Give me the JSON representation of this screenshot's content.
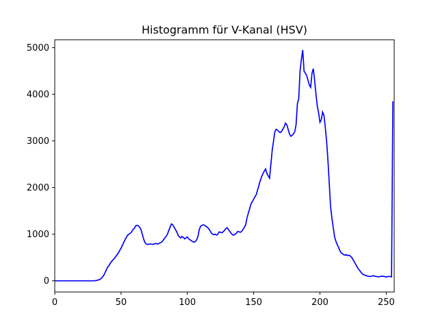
{
  "colors": {
    "line": "#0000ff",
    "axes": "#000000",
    "background": "#ffffff"
  },
  "chart_data": {
    "type": "line",
    "title": "Histogramm für V-Kanal (HSV)",
    "xlabel": "",
    "ylabel": "",
    "xlim": [
      0,
      256
    ],
    "ylim": [
      -240,
      5170
    ],
    "grid": false,
    "legend": "none",
    "x_ticks": [
      0,
      50,
      100,
      150,
      200,
      250
    ],
    "y_ticks": [
      0,
      1000,
      2000,
      3000,
      4000,
      5000
    ],
    "x_tick_labels": [
      "0",
      "50",
      "100",
      "150",
      "200",
      "250"
    ],
    "y_tick_labels": [
      "0",
      "1000",
      "2000",
      "3000",
      "4000",
      "5000"
    ],
    "series": [
      {
        "points": [
          [
            0,
            0
          ],
          [
            30,
            0
          ],
          [
            31,
            5
          ],
          [
            32,
            10
          ],
          [
            33,
            20
          ],
          [
            34,
            30
          ],
          [
            35,
            50
          ],
          [
            36,
            80
          ],
          [
            37,
            120
          ],
          [
            38,
            180
          ],
          [
            39,
            240
          ],
          [
            40,
            300
          ],
          [
            41,
            330
          ],
          [
            42,
            380
          ],
          [
            43,
            420
          ],
          [
            44,
            450
          ],
          [
            45,
            480
          ],
          [
            46,
            520
          ],
          [
            47,
            560
          ],
          [
            48,
            600
          ],
          [
            49,
            650
          ],
          [
            50,
            700
          ],
          [
            51,
            760
          ],
          [
            52,
            820
          ],
          [
            53,
            880
          ],
          [
            54,
            930
          ],
          [
            55,
            980
          ],
          [
            56,
            1000
          ],
          [
            57,
            1020
          ],
          [
            58,
            1050
          ],
          [
            59,
            1100
          ],
          [
            60,
            1120
          ],
          [
            61,
            1180
          ],
          [
            62,
            1190
          ],
          [
            63,
            1180
          ],
          [
            64,
            1150
          ],
          [
            65,
            1100
          ],
          [
            66,
            1000
          ],
          [
            67,
            900
          ],
          [
            68,
            820
          ],
          [
            69,
            790
          ],
          [
            70,
            780
          ],
          [
            72,
            790
          ],
          [
            74,
            780
          ],
          [
            76,
            800
          ],
          [
            78,
            790
          ],
          [
            79,
            810
          ],
          [
            80,
            820
          ],
          [
            81,
            840
          ],
          [
            82,
            880
          ],
          [
            83,
            920
          ],
          [
            84,
            950
          ],
          [
            85,
            1000
          ],
          [
            86,
            1080
          ],
          [
            87,
            1150
          ],
          [
            88,
            1220
          ],
          [
            89,
            1200
          ],
          [
            90,
            1150
          ],
          [
            91,
            1100
          ],
          [
            92,
            1050
          ],
          [
            93,
            980
          ],
          [
            94,
            940
          ],
          [
            95,
            920
          ],
          [
            96,
            950
          ],
          [
            97,
            930
          ],
          [
            98,
            900
          ],
          [
            99,
            920
          ],
          [
            100,
            940
          ],
          [
            101,
            900
          ],
          [
            102,
            880
          ],
          [
            103,
            860
          ],
          [
            104,
            840
          ],
          [
            105,
            830
          ],
          [
            106,
            840
          ],
          [
            107,
            880
          ],
          [
            108,
            950
          ],
          [
            109,
            1100
          ],
          [
            110,
            1170
          ],
          [
            111,
            1190
          ],
          [
            112,
            1200
          ],
          [
            113,
            1190
          ],
          [
            114,
            1170
          ],
          [
            115,
            1150
          ],
          [
            116,
            1120
          ],
          [
            117,
            1080
          ],
          [
            118,
            1030
          ],
          [
            119,
            1000
          ],
          [
            120,
            990
          ],
          [
            121,
            1000
          ],
          [
            122,
            980
          ],
          [
            123,
            1000
          ],
          [
            124,
            1050
          ],
          [
            125,
            1040
          ],
          [
            126,
            1030
          ],
          [
            127,
            1050
          ],
          [
            128,
            1080
          ],
          [
            129,
            1120
          ],
          [
            130,
            1140
          ],
          [
            131,
            1100
          ],
          [
            132,
            1060
          ],
          [
            133,
            1020
          ],
          [
            134,
            990
          ],
          [
            135,
            980
          ],
          [
            136,
            1000
          ],
          [
            137,
            1020
          ],
          [
            138,
            1060
          ],
          [
            139,
            1050
          ],
          [
            140,
            1040
          ],
          [
            141,
            1060
          ],
          [
            142,
            1100
          ],
          [
            143,
            1150
          ],
          [
            144,
            1200
          ],
          [
            145,
            1350
          ],
          [
            146,
            1450
          ],
          [
            147,
            1550
          ],
          [
            148,
            1650
          ],
          [
            149,
            1700
          ],
          [
            150,
            1750
          ],
          [
            151,
            1800
          ],
          [
            152,
            1850
          ],
          [
            153,
            1950
          ],
          [
            154,
            2050
          ],
          [
            155,
            2150
          ],
          [
            156,
            2230
          ],
          [
            157,
            2300
          ],
          [
            158,
            2350
          ],
          [
            159,
            2400
          ],
          [
            160,
            2300
          ],
          [
            161,
            2250
          ],
          [
            162,
            2200
          ],
          [
            163,
            2500
          ],
          [
            164,
            2800
          ],
          [
            165,
            3000
          ],
          [
            166,
            3200
          ],
          [
            167,
            3250
          ],
          [
            168,
            3230
          ],
          [
            169,
            3200
          ],
          [
            170,
            3180
          ],
          [
            171,
            3200
          ],
          [
            172,
            3250
          ],
          [
            173,
            3300
          ],
          [
            174,
            3380
          ],
          [
            175,
            3350
          ],
          [
            176,
            3250
          ],
          [
            177,
            3150
          ],
          [
            178,
            3100
          ],
          [
            179,
            3120
          ],
          [
            180,
            3150
          ],
          [
            181,
            3200
          ],
          [
            182,
            3350
          ],
          [
            183,
            3800
          ],
          [
            184,
            3900
          ],
          [
            185,
            4500
          ],
          [
            186,
            4750
          ],
          [
            187,
            4950
          ],
          [
            188,
            4500
          ],
          [
            189,
            4450
          ],
          [
            190,
            4400
          ],
          [
            191,
            4300
          ],
          [
            192,
            4200
          ],
          [
            193,
            4150
          ],
          [
            194,
            4450
          ],
          [
            195,
            4550
          ],
          [
            196,
            4300
          ],
          [
            197,
            4000
          ],
          [
            198,
            3750
          ],
          [
            199,
            3600
          ],
          [
            200,
            3400
          ],
          [
            201,
            3450
          ],
          [
            202,
            3620
          ],
          [
            203,
            3550
          ],
          [
            204,
            3300
          ],
          [
            205,
            3000
          ],
          [
            206,
            2600
          ],
          [
            207,
            2100
          ],
          [
            208,
            1600
          ],
          [
            209,
            1350
          ],
          [
            210,
            1150
          ],
          [
            211,
            950
          ],
          [
            212,
            850
          ],
          [
            213,
            780
          ],
          [
            214,
            720
          ],
          [
            215,
            650
          ],
          [
            216,
            600
          ],
          [
            217,
            580
          ],
          [
            218,
            560
          ],
          [
            219,
            550
          ],
          [
            220,
            560
          ],
          [
            221,
            540
          ],
          [
            222,
            550
          ],
          [
            223,
            530
          ],
          [
            224,
            500
          ],
          [
            225,
            450
          ],
          [
            226,
            400
          ],
          [
            227,
            350
          ],
          [
            228,
            300
          ],
          [
            229,
            250
          ],
          [
            230,
            220
          ],
          [
            231,
            180
          ],
          [
            232,
            150
          ],
          [
            233,
            130
          ],
          [
            234,
            120
          ],
          [
            235,
            110
          ],
          [
            236,
            100
          ],
          [
            237,
            95
          ],
          [
            238,
            90
          ],
          [
            239,
            100
          ],
          [
            240,
            110
          ],
          [
            241,
            100
          ],
          [
            242,
            95
          ],
          [
            243,
            90
          ],
          [
            244,
            85
          ],
          [
            245,
            90
          ],
          [
            246,
            95
          ],
          [
            247,
            100
          ],
          [
            248,
            95
          ],
          [
            249,
            90
          ],
          [
            250,
            80
          ],
          [
            251,
            90
          ],
          [
            252,
            95
          ],
          [
            253,
            90
          ],
          [
            254,
            85
          ],
          [
            255,
            3850
          ]
        ]
      }
    ]
  }
}
